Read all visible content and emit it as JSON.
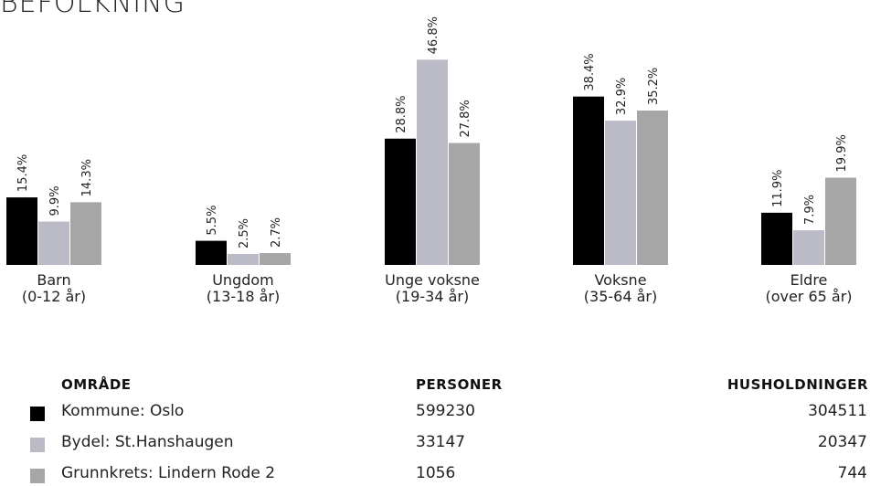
{
  "title": "BEFOLKNING",
  "colors": {
    "Kommune": "#000000",
    "Bydel": "#bbbbc8",
    "Grunnkrets": "#a6a6a6"
  },
  "chart_data": {
    "type": "bar",
    "categories": [
      [
        "Barn",
        "(0-12 år)"
      ],
      [
        "Ungdom",
        "(13-18 år)"
      ],
      [
        "Unge voksne",
        "(19-34 år)"
      ],
      [
        "Voksne",
        "(35-64 år)"
      ],
      [
        "Eldre",
        "(over 65 år)"
      ]
    ],
    "series": [
      {
        "name": "Kommune: Oslo",
        "values": [
          15.4,
          5.5,
          28.8,
          38.4,
          11.9
        ],
        "labels": [
          "15.4%",
          "5.5%",
          "28.8%",
          "38.4%",
          "11.9%"
        ]
      },
      {
        "name": "Bydel: St.Hanshaugen",
        "values": [
          9.9,
          2.5,
          46.8,
          32.9,
          7.9
        ],
        "labels": [
          "9.9%",
          "2.5%",
          "46.8%",
          "32.9%",
          "7.9%"
        ]
      },
      {
        "name": "Grunnkrets: Lindern Rode 2",
        "values": [
          14.3,
          2.7,
          27.8,
          35.2,
          19.9
        ],
        "labels": [
          "14.3%",
          "2.7%",
          "27.8%",
          "35.2%",
          "19.9%"
        ]
      }
    ]
  },
  "table": {
    "headers": {
      "area": "OMRÅDE",
      "persons": "PERSONER",
      "households": "HUSHOLDNINGER"
    },
    "rows": [
      {
        "area": "Kommune: Oslo",
        "persons": "599230",
        "households": "304511",
        "color": "#000000"
      },
      {
        "area": "Bydel: St.Hanshaugen",
        "persons": "33147",
        "households": "20347",
        "color": "#bbbbc8"
      },
      {
        "area": "Grunnkrets: Lindern Rode 2",
        "persons": "1056",
        "households": "744",
        "color": "#a6a6a6"
      }
    ]
  }
}
